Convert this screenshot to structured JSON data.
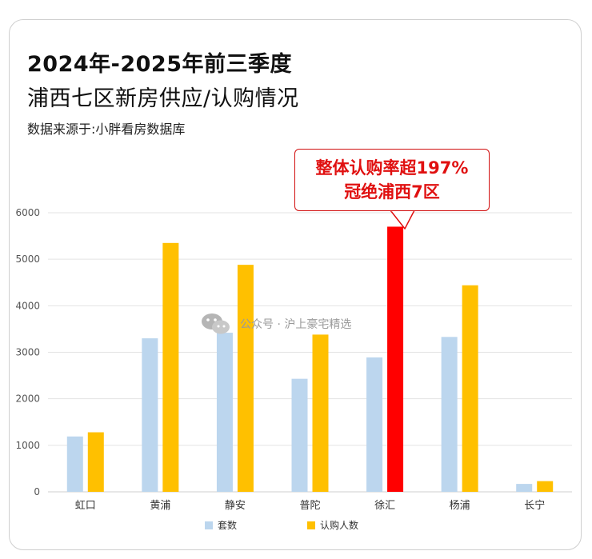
{
  "header": {
    "line1": "2024年-2025年前三季度",
    "line2": "浦西七区新房供应/认购情况",
    "source": "数据来源于:小胖看房数据库"
  },
  "callout": {
    "line1": "整体认购率超197%",
    "line2": "冠绝浦西7区"
  },
  "watermark": {
    "text": "公众号 · 沪上豪宅精选",
    "icon": "wechat-icon"
  },
  "colors": {
    "supply": "#bcd6ee",
    "subscribe": "#ffc000",
    "highlight": "#ff0000",
    "grid": "#e3e3e3",
    "callout": "#e01010"
  },
  "chart_data": {
    "type": "bar",
    "categories": [
      "虹口",
      "黄浦",
      "静安",
      "普陀",
      "徐汇",
      "杨浦",
      "长宁"
    ],
    "series": [
      {
        "name": "套数",
        "values": [
          1190,
          3300,
          3420,
          2430,
          2890,
          3330,
          170
        ]
      },
      {
        "name": "认购人数",
        "values": [
          1280,
          5350,
          4880,
          3380,
          5700,
          4440,
          230
        ]
      }
    ],
    "highlight": {
      "series": 1,
      "category": "徐汇"
    },
    "ylim": [
      0,
      6000
    ],
    "yticks": [
      "0",
      "1000",
      "2000",
      "3000",
      "4000",
      "5000",
      "6000"
    ],
    "title": "",
    "xlabel": "",
    "ylabel": "",
    "grid": true,
    "legend_position": "bottom"
  }
}
